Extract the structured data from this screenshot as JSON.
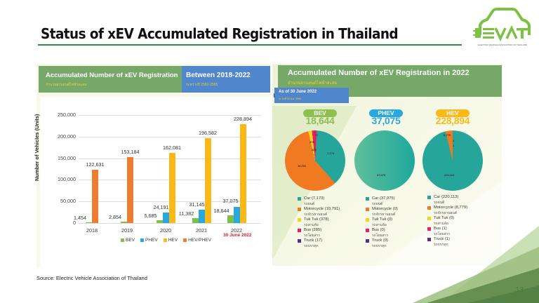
{
  "slide": {
    "title": "Status of xEV Accumulated Registration in Thailand",
    "source": "Source: Electric Vehicle Association of Thailand",
    "page_number": "13",
    "logo": {
      "name": "EVAT",
      "caption": "ELECTRIC VEHICLE ASSOCIATION OF THAILAND"
    }
  },
  "left_panel": {
    "header_title": "Accumulated Number of xEV Registration",
    "header_sub": "จำนวนยานยนต์ไฟฟ้าสะสม",
    "period_title": "Between 2018-2022",
    "period_sub": "ระหว่างปี 2561-2565",
    "note": "30 June 2022"
  },
  "right_panel": {
    "header_title": "Accumulated Number of xEV Registration in 2022",
    "header_sub": "จำนวนยานยนต์ไฟฟ้าสะสม",
    "asof_title": "As of 30 June 2022",
    "asof_sub": "ณ วันที่ 30 มิ.ย. 2565",
    "groups": [
      {
        "name": "BEV",
        "total": "18,644",
        "color": "#8cc152",
        "slice_labels": [
          "17",
          "378",
          "285",
          "7,173",
          "10,791"
        ],
        "legend": [
          {
            "label": "Car (7,173)",
            "thai": "รถยนต์",
            "color": "#26a69a"
          },
          {
            "label": "Motorcycle (10,791)",
            "thai": "รถจักรยานยนต์",
            "color": "#f07a22"
          },
          {
            "label": "Tuk Tuk (378)",
            "thai": "รถสามล้อ",
            "color": "#f7d31a"
          },
          {
            "label": "Bus (285)",
            "thai": "รถโดยสาร",
            "color": "#e91e63"
          },
          {
            "label": "Truck (17)",
            "thai": "รถบรรทุก",
            "color": "#5b2c83"
          }
        ]
      },
      {
        "name": "PHEV",
        "total": "37,075",
        "color": "#29a8e0",
        "slice_labels": [
          "37,075"
        ],
        "legend": [
          {
            "label": "Car (37,075)",
            "thai": "รถยนต์",
            "color": "#26a69a"
          },
          {
            "label": "Motorcycle (0)",
            "thai": "รถจักรยานยนต์",
            "color": "#f07a22"
          },
          {
            "label": "Tuk Tuk (0)",
            "thai": "รถสามล้อ",
            "color": "#f7d31a"
          },
          {
            "label": "Bus (0)",
            "thai": "รถโดยสาร",
            "color": "#e91e63"
          },
          {
            "label": "Truck (0)",
            "thai": "รถบรรทุก",
            "color": "#5b2c83"
          }
        ]
      },
      {
        "name": "HEV",
        "total": "228,894",
        "color": "#fbb918",
        "slice_labels": [
          "8,779",
          "1",
          "1",
          "220,113"
        ],
        "legend": [
          {
            "label": "Car (220,113)",
            "thai": "รถยนต์",
            "color": "#26a69a"
          },
          {
            "label": "Motorcycle (8,779)",
            "thai": "รถจักรยานยนต์",
            "color": "#f07a22"
          },
          {
            "label": "Tuk Tuk (0)",
            "thai": "รถสามล้อ",
            "color": "#f7d31a"
          },
          {
            "label": "Bus (1)",
            "thai": "รถโดยสาร",
            "color": "#e91e63"
          },
          {
            "label": "Truck (1)",
            "thai": "รถบรรทุก",
            "color": "#5b2c83"
          }
        ]
      }
    ]
  },
  "chart_data": [
    {
      "type": "bar",
      "title": "Accumulated Number of xEV Registration Between 2018-2022",
      "xlabel": "",
      "ylabel": "Number of Vehicles (Units)",
      "ylim": [
        0,
        250000
      ],
      "yticks": [
        "0",
        "50,000",
        "100,000",
        "150,000",
        "200,000",
        "250,000"
      ],
      "categories": [
        "2018",
        "2019",
        "2020",
        "2021",
        "2022"
      ],
      "category_note": {
        "2022": "30 June 2022"
      },
      "grid": true,
      "legend_position": "bottom",
      "series": [
        {
          "name": "BEV",
          "color": "#7cc04b",
          "values": [
            1454,
            2854,
            5685,
            11382,
            18644
          ],
          "labels": [
            "1,454",
            "2,854",
            "5,685",
            "11,382",
            "18,644"
          ]
        },
        {
          "name": "PHEV",
          "color": "#29a8e0",
          "values": [
            null,
            null,
            24191,
            31145,
            37075
          ],
          "labels": [
            "",
            "",
            "24,191",
            "31,145",
            "37,075"
          ]
        },
        {
          "name": "HEV",
          "color": "#fbb918",
          "values": [
            null,
            null,
            162081,
            196582,
            228894
          ],
          "labels": [
            "",
            "",
            "162,081",
            "196,582",
            "228,894"
          ]
        },
        {
          "name": "HEV/PHEV",
          "color": "#ed7d31",
          "values": [
            122631,
            153184,
            null,
            null,
            null
          ],
          "labels": [
            "122,631",
            "153,184",
            "",
            "",
            ""
          ]
        }
      ]
    },
    {
      "type": "pie",
      "title": "BEV 18,644",
      "categories": [
        "Car",
        "Motorcycle",
        "Tuk Tuk",
        "Bus",
        "Truck"
      ],
      "values": [
        7173,
        10791,
        378,
        285,
        17
      ]
    },
    {
      "type": "pie",
      "title": "PHEV 37,075",
      "categories": [
        "Car",
        "Motorcycle",
        "Tuk Tuk",
        "Bus",
        "Truck"
      ],
      "values": [
        37075,
        0,
        0,
        0,
        0
      ]
    },
    {
      "type": "pie",
      "title": "HEV 228,894",
      "categories": [
        "Car",
        "Motorcycle",
        "Tuk Tuk",
        "Bus",
        "Truck"
      ],
      "values": [
        220113,
        8779,
        0,
        1,
        1
      ]
    }
  ]
}
